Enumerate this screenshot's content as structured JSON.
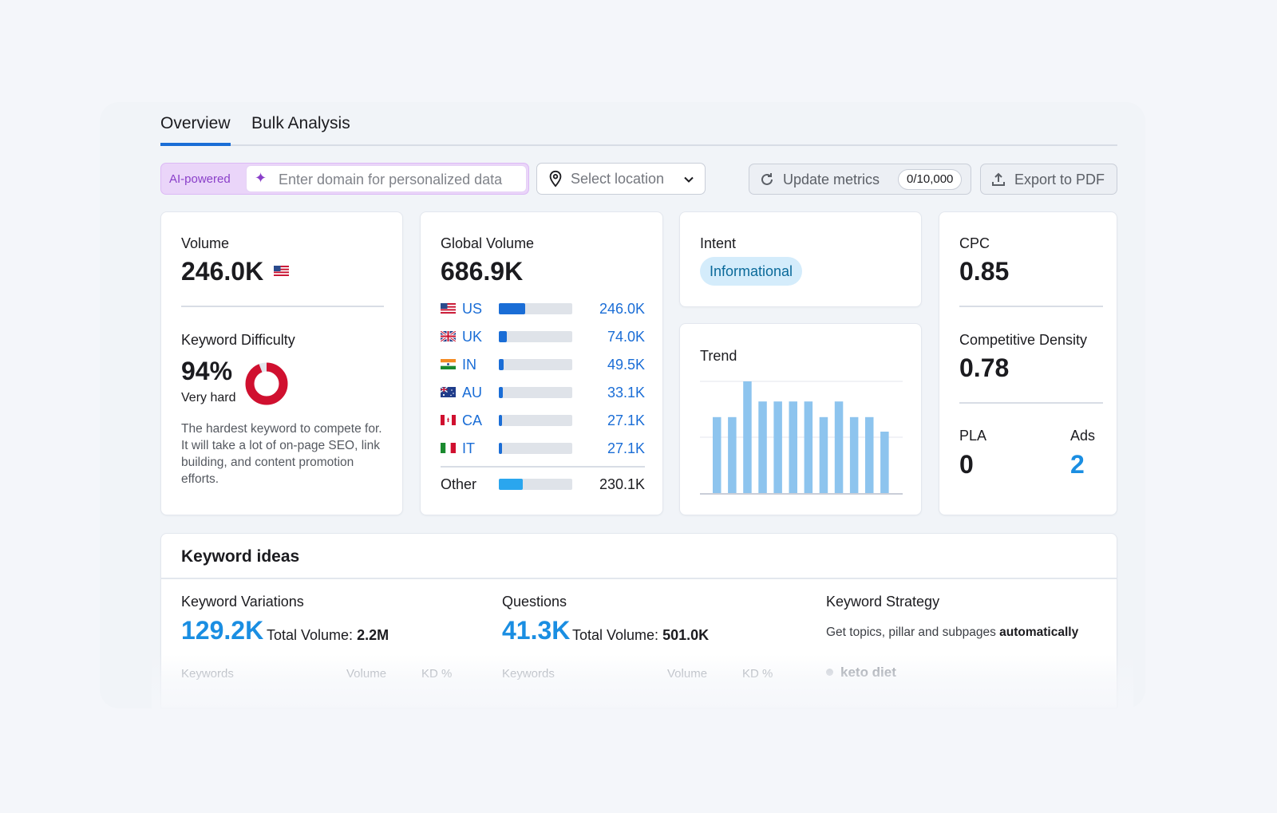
{
  "tabs": [
    {
      "label": "Overview",
      "active": true
    },
    {
      "label": "Bulk Analysis",
      "active": false
    }
  ],
  "toolbar": {
    "ai_label": "AI-powered",
    "domain_placeholder": "Enter domain for personalized data",
    "location_label": "Select location",
    "update_label": "Update metrics",
    "update_count": "0/10,000",
    "export_label": "Export to PDF"
  },
  "volume": {
    "label": "Volume",
    "value": "246.0K",
    "kd_label": "Keyword Difficulty",
    "kd_value": "94%",
    "kd_percent": 94,
    "kd_level": "Very hard",
    "kd_desc": "The hardest keyword to compete for. It will take a lot of on-page SEO, link building, and content promotion efforts."
  },
  "global_volume": {
    "label": "Global Volume",
    "value": "686.9K",
    "rows": [
      {
        "code": "US",
        "value": "246.0K",
        "share": 0.36
      },
      {
        "code": "UK",
        "value": "74.0K",
        "share": 0.11
      },
      {
        "code": "IN",
        "value": "49.5K",
        "share": 0.07
      },
      {
        "code": "AU",
        "value": "33.1K",
        "share": 0.05
      },
      {
        "code": "CA",
        "value": "27.1K",
        "share": 0.04
      },
      {
        "code": "IT",
        "value": "27.1K",
        "share": 0.04
      }
    ],
    "other": {
      "label": "Other",
      "value": "230.1K",
      "share": 0.33
    }
  },
  "intent": {
    "label": "Intent",
    "badge": "Informational"
  },
  "trend": {
    "label": "Trend",
    "values": [
      0.68,
      0.68,
      1.0,
      0.82,
      0.82,
      0.82,
      0.82,
      0.68,
      0.82,
      0.68,
      0.68,
      0.55
    ]
  },
  "cpc": {
    "label": "CPC",
    "value": "0.85",
    "density_label": "Competitive Density",
    "density_value": "0.78",
    "pla_label": "PLA",
    "pla_value": "0",
    "ads_label": "Ads",
    "ads_value": "2"
  },
  "ideas": {
    "title": "Keyword ideas",
    "variations": {
      "title": "Keyword Variations",
      "count": "129.2K",
      "total_label": "Total Volume:",
      "total_value": "2.2M",
      "col_keywords": "Keywords",
      "col_volume": "Volume",
      "col_kd": "KD %"
    },
    "questions": {
      "title": "Questions",
      "count": "41.3K",
      "total_label": "Total Volume:",
      "total_value": "501.0K",
      "col_keywords": "Keywords",
      "col_volume": "Volume",
      "col_kd": "KD %"
    },
    "strategy": {
      "title": "Keyword Strategy",
      "desc": "Get topics, pillar and subpages",
      "desc_bold": "automatically",
      "item": "keto diet"
    }
  },
  "colors": {
    "accent": "#1a6dd6",
    "link": "#1a8ee2",
    "kd_red": "#d0102f",
    "trend_bar": "#8dc4ee"
  }
}
